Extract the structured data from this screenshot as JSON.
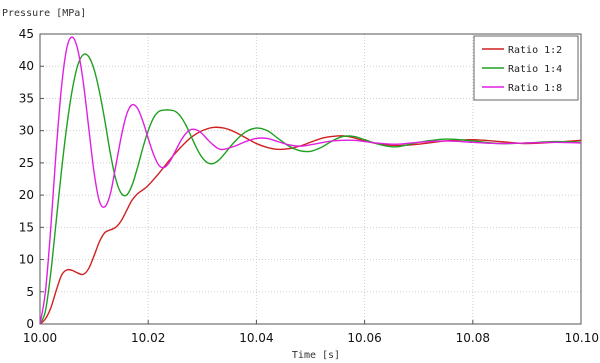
{
  "chart_data": {
    "type": "line",
    "title": "",
    "ylabel": "Pressure [MPa]",
    "xlabel": "Time [s]",
    "xlim": [
      10.0,
      10.1
    ],
    "ylim": [
      0,
      45
    ],
    "x_ticks": [
      10.0,
      10.02,
      10.04,
      10.06,
      10.08,
      10.1
    ],
    "x_tick_labels": [
      "10.00",
      "10.02",
      "10.04",
      "10.06",
      "10.08",
      "10.10"
    ],
    "y_ticks": [
      0,
      5,
      10,
      15,
      20,
      25,
      30,
      35,
      40,
      45
    ],
    "y_tick_labels": [
      "0",
      "5",
      "10",
      "15",
      "20",
      "25",
      "30",
      "35",
      "40",
      "45"
    ],
    "grid": true,
    "legend_position": "top-right",
    "series": [
      {
        "name": "Ratio 1:2",
        "color": "#d02020",
        "points": [
          [
            10.0,
            0
          ],
          [
            10.001,
            0.8
          ],
          [
            10.002,
            2.5
          ],
          [
            10.003,
            5.2
          ],
          [
            10.004,
            7.6
          ],
          [
            10.005,
            8.4
          ],
          [
            10.006,
            8.3
          ],
          [
            10.007,
            7.9
          ],
          [
            10.008,
            7.7
          ],
          [
            10.009,
            8.6
          ],
          [
            10.01,
            10.6
          ],
          [
            10.011,
            12.8
          ],
          [
            10.012,
            14.2
          ],
          [
            10.013,
            14.6
          ],
          [
            10.014,
            15.0
          ],
          [
            10.015,
            16.0
          ],
          [
            10.016,
            17.6
          ],
          [
            10.017,
            19.2
          ],
          [
            10.018,
            20.2
          ],
          [
            10.019,
            20.8
          ],
          [
            10.02,
            21.5
          ],
          [
            10.022,
            23.4
          ],
          [
            10.024,
            25.5
          ],
          [
            10.026,
            27.4
          ],
          [
            10.028,
            29.0
          ],
          [
            10.03,
            30.0
          ],
          [
            10.032,
            30.5
          ],
          [
            10.034,
            30.4
          ],
          [
            10.036,
            29.8
          ],
          [
            10.038,
            28.9
          ],
          [
            10.04,
            28.0
          ],
          [
            10.042,
            27.4
          ],
          [
            10.044,
            27.1
          ],
          [
            10.046,
            27.2
          ],
          [
            10.048,
            27.6
          ],
          [
            10.05,
            28.2
          ],
          [
            10.052,
            28.8
          ],
          [
            10.054,
            29.1
          ],
          [
            10.056,
            29.2
          ],
          [
            10.058,
            28.9
          ],
          [
            10.06,
            28.4
          ],
          [
            10.063,
            27.9
          ],
          [
            10.066,
            27.7
          ],
          [
            10.07,
            27.9
          ],
          [
            10.075,
            28.4
          ],
          [
            10.08,
            28.6
          ],
          [
            10.085,
            28.3
          ],
          [
            10.09,
            28.0
          ],
          [
            10.095,
            28.2
          ],
          [
            10.1,
            28.5
          ]
        ]
      },
      {
        "name": "Ratio 1:4",
        "color": "#20a020",
        "points": [
          [
            10.0,
            0
          ],
          [
            10.001,
            2.0
          ],
          [
            10.002,
            8.0
          ],
          [
            10.003,
            16.0
          ],
          [
            10.004,
            24.0
          ],
          [
            10.005,
            31.0
          ],
          [
            10.006,
            36.5
          ],
          [
            10.007,
            40.2
          ],
          [
            10.008,
            41.8
          ],
          [
            10.009,
            41.5
          ],
          [
            10.01,
            39.5
          ],
          [
            10.011,
            36.0
          ],
          [
            10.012,
            31.5
          ],
          [
            10.013,
            26.5
          ],
          [
            10.014,
            22.5
          ],
          [
            10.015,
            20.3
          ],
          [
            10.016,
            20.0
          ],
          [
            10.017,
            21.5
          ],
          [
            10.018,
            24.2
          ],
          [
            10.019,
            27.3
          ],
          [
            10.02,
            30.0
          ],
          [
            10.021,
            32.0
          ],
          [
            10.022,
            33.0
          ],
          [
            10.023,
            33.2
          ],
          [
            10.024,
            33.2
          ],
          [
            10.025,
            33.0
          ],
          [
            10.026,
            32.2
          ],
          [
            10.027,
            30.8
          ],
          [
            10.028,
            29.0
          ],
          [
            10.029,
            27.2
          ],
          [
            10.03,
            25.8
          ],
          [
            10.031,
            25.0
          ],
          [
            10.032,
            24.9
          ],
          [
            10.033,
            25.4
          ],
          [
            10.034,
            26.3
          ],
          [
            10.036,
            28.3
          ],
          [
            10.038,
            29.8
          ],
          [
            10.04,
            30.4
          ],
          [
            10.042,
            30.0
          ],
          [
            10.044,
            28.8
          ],
          [
            10.046,
            27.6
          ],
          [
            10.048,
            26.9
          ],
          [
            10.05,
            26.8
          ],
          [
            10.052,
            27.4
          ],
          [
            10.054,
            28.4
          ],
          [
            10.056,
            29.1
          ],
          [
            10.058,
            29.1
          ],
          [
            10.06,
            28.6
          ],
          [
            10.063,
            27.8
          ],
          [
            10.066,
            27.5
          ],
          [
            10.07,
            28.2
          ],
          [
            10.075,
            28.7
          ],
          [
            10.08,
            28.4
          ],
          [
            10.085,
            28.0
          ],
          [
            10.09,
            28.1
          ],
          [
            10.095,
            28.3
          ],
          [
            10.1,
            28.2
          ]
        ]
      },
      {
        "name": "Ratio 1:8",
        "color": "#e020e0",
        "points": [
          [
            10.0,
            0
          ],
          [
            10.001,
            5.0
          ],
          [
            10.002,
            15.0
          ],
          [
            10.003,
            27.0
          ],
          [
            10.004,
            37.0
          ],
          [
            10.005,
            43.0
          ],
          [
            10.006,
            44.5
          ],
          [
            10.007,
            42.5
          ],
          [
            10.008,
            37.5
          ],
          [
            10.009,
            30.5
          ],
          [
            10.01,
            23.5
          ],
          [
            10.011,
            19.0
          ],
          [
            10.012,
            18.2
          ],
          [
            10.013,
            20.2
          ],
          [
            10.014,
            24.5
          ],
          [
            10.015,
            29.0
          ],
          [
            10.016,
            32.5
          ],
          [
            10.017,
            34.0
          ],
          [
            10.018,
            33.5
          ],
          [
            10.019,
            31.5
          ],
          [
            10.02,
            28.8
          ],
          [
            10.021,
            26.3
          ],
          [
            10.022,
            24.6
          ],
          [
            10.023,
            24.3
          ],
          [
            10.024,
            25.2
          ],
          [
            10.025,
            26.8
          ],
          [
            10.026,
            28.4
          ],
          [
            10.027,
            29.6
          ],
          [
            10.028,
            30.2
          ],
          [
            10.029,
            30.1
          ],
          [
            10.03,
            29.5
          ],
          [
            10.031,
            28.6
          ],
          [
            10.032,
            27.8
          ],
          [
            10.033,
            27.2
          ],
          [
            10.034,
            27.1
          ],
          [
            10.036,
            27.6
          ],
          [
            10.038,
            28.3
          ],
          [
            10.04,
            28.8
          ],
          [
            10.042,
            28.8
          ],
          [
            10.044,
            28.3
          ],
          [
            10.046,
            27.8
          ],
          [
            10.048,
            27.6
          ],
          [
            10.05,
            27.8
          ],
          [
            10.054,
            28.4
          ],
          [
            10.058,
            28.5
          ],
          [
            10.062,
            28.1
          ],
          [
            10.066,
            27.9
          ],
          [
            10.07,
            28.2
          ],
          [
            10.075,
            28.4
          ],
          [
            10.08,
            28.2
          ],
          [
            10.085,
            28.0
          ],
          [
            10.09,
            28.1
          ],
          [
            10.095,
            28.2
          ],
          [
            10.1,
            28.1
          ]
        ]
      }
    ]
  }
}
